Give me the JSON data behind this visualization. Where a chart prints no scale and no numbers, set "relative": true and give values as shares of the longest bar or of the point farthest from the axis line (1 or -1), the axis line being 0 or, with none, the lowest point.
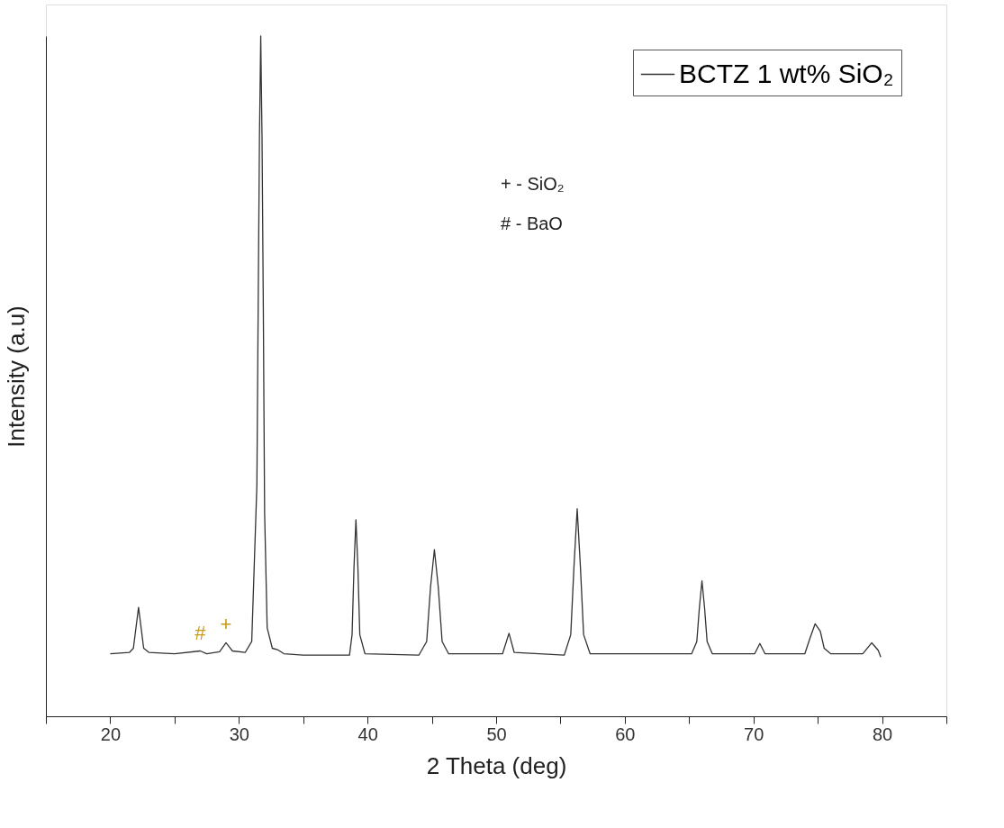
{
  "chart_data": {
    "type": "line",
    "relative": true,
    "xlabel": "2 Theta (deg)",
    "ylabel": "Intensity (a.u)",
    "xlim": [
      15,
      85
    ],
    "xticks": [
      {
        "value": 15,
        "label": null
      },
      20,
      {
        "value": 25,
        "label": null
      },
      30,
      {
        "value": 35,
        "label": null
      },
      40,
      {
        "value": 45,
        "label": null
      },
      50,
      {
        "value": 55,
        "label": null
      },
      60,
      {
        "value": 65,
        "label": null
      },
      70,
      {
        "value": 75,
        "label": null
      },
      80,
      {
        "value": 85,
        "label": null
      }
    ],
    "grid": false,
    "legend": "top right",
    "marker": "none",
    "line_style": "solid",
    "series": [
      {
        "name": "BCTZ 1 wt% SiO₂",
        "color": "#333333",
        "x": [
          20.0,
          21.5,
          21.8,
          22.2,
          22.6,
          23.0,
          25.0,
          27.0,
          27.5,
          28.5,
          29.0,
          29.5,
          30.5,
          31.0,
          31.4,
          31.5,
          31.6,
          31.7,
          31.8,
          31.9,
          32.0,
          32.2,
          32.6,
          33.0,
          33.5,
          35.0,
          38.6,
          38.8,
          38.95,
          39.1,
          39.25,
          39.4,
          39.8,
          44.0,
          44.6,
          44.9,
          45.2,
          45.5,
          45.8,
          46.3,
          47.5,
          50.5,
          51.0,
          51.4,
          55.3,
          55.8,
          56.05,
          56.3,
          56.55,
          56.8,
          57.3,
          65.2,
          65.6,
          65.8,
          66.0,
          66.2,
          66.4,
          66.8,
          70.1,
          70.5,
          70.9,
          74.0,
          74.4,
          74.8,
          75.2,
          75.5,
          76.0,
          78.5,
          79.2,
          79.7,
          79.9
        ],
        "values": [
          0.092,
          0.094,
          0.1,
          0.16,
          0.1,
          0.094,
          0.092,
          0.096,
          0.092,
          0.095,
          0.108,
          0.096,
          0.094,
          0.11,
          0.34,
          0.6,
          0.85,
          1.0,
          0.85,
          0.6,
          0.3,
          0.13,
          0.1,
          0.098,
          0.092,
          0.09,
          0.09,
          0.12,
          0.22,
          0.289,
          0.22,
          0.12,
          0.092,
          0.09,
          0.11,
          0.19,
          0.245,
          0.19,
          0.11,
          0.092,
          0.092,
          0.092,
          0.122,
          0.094,
          0.09,
          0.12,
          0.22,
          0.305,
          0.22,
          0.12,
          0.092,
          0.092,
          0.11,
          0.16,
          0.199,
          0.16,
          0.11,
          0.092,
          0.092,
          0.107,
          0.092,
          0.092,
          0.115,
          0.136,
          0.125,
          0.1,
          0.092,
          0.092,
          0.108,
          0.097,
          0.087
        ]
      }
    ],
    "annotations": [
      {
        "text": "#",
        "x": 27.0,
        "y": 0.096
      },
      {
        "text": "+",
        "x": 29.0,
        "y": 0.108
      },
      "+ - SiO₂",
      "# - BaO"
    ]
  }
}
